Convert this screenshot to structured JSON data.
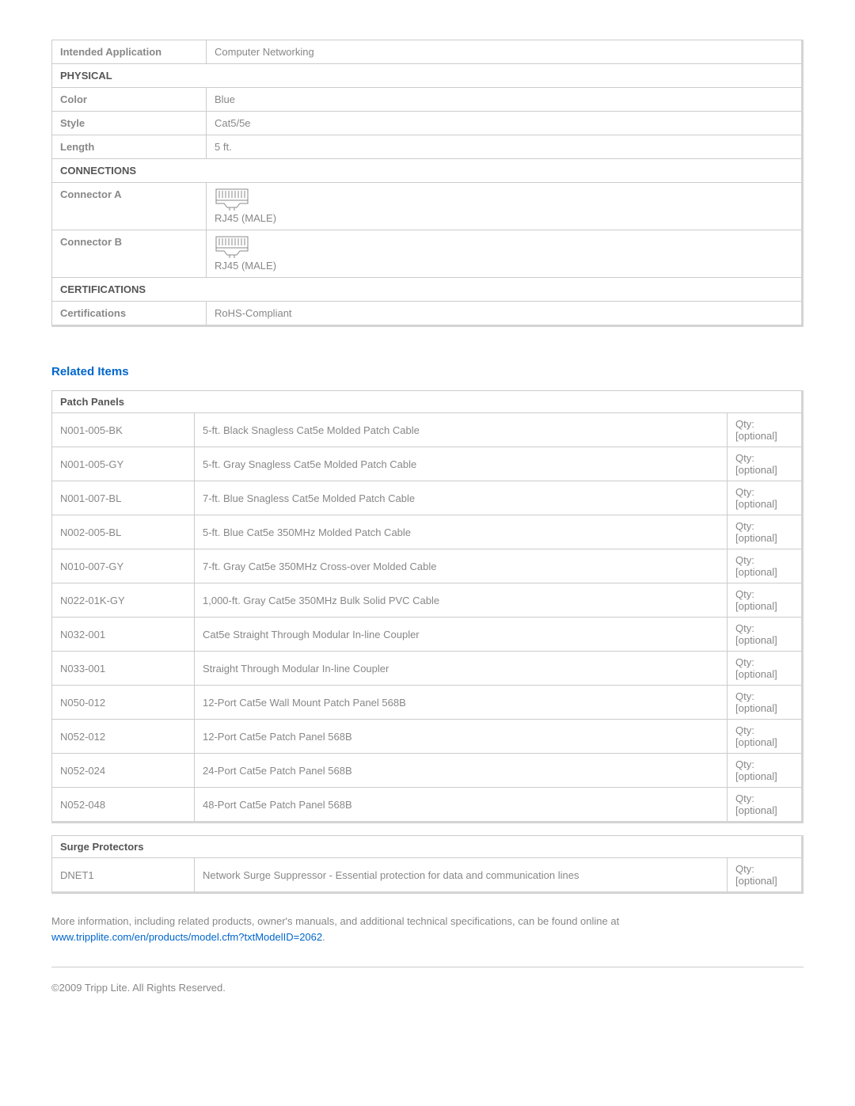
{
  "specs": {
    "intended_application": {
      "label": "Intended Application",
      "value": "Computer Networking"
    },
    "sections": {
      "physical": {
        "header": "PHYSICAL",
        "rows": [
          {
            "label": "Color",
            "value": "Blue"
          },
          {
            "label": "Style",
            "value": "Cat5/5e"
          },
          {
            "label": "Length",
            "value": "5 ft."
          }
        ]
      },
      "connections": {
        "header": "CONNECTIONS",
        "rows": [
          {
            "label": "Connector A",
            "value": "RJ45 (MALE)",
            "icon": "rj45"
          },
          {
            "label": "Connector B",
            "value": "RJ45 (MALE)",
            "icon": "rj45"
          }
        ]
      },
      "certifications": {
        "header": "CERTIFICATIONS",
        "rows": [
          {
            "label": "Certifications",
            "value": "RoHS-Compliant"
          }
        ]
      }
    }
  },
  "related": {
    "heading": "Related Items",
    "groups": [
      {
        "header": "Patch Panels",
        "items": [
          {
            "sku": "N001-005-BK",
            "desc": "5-ft. Black Snagless Cat5e Molded Patch Cable",
            "qty": "Qty: [optional]"
          },
          {
            "sku": "N001-005-GY",
            "desc": "5-ft. Gray Snagless Cat5e Molded Patch Cable",
            "qty": "Qty: [optional]"
          },
          {
            "sku": "N001-007-BL",
            "desc": "7-ft. Blue Snagless Cat5e Molded Patch Cable",
            "qty": "Qty: [optional]"
          },
          {
            "sku": "N002-005-BL",
            "desc": "5-ft. Blue Cat5e 350MHz Molded Patch Cable",
            "qty": "Qty: [optional]"
          },
          {
            "sku": "N010-007-GY",
            "desc": "7-ft. Gray Cat5e 350MHz Cross-over Molded Cable",
            "qty": "Qty: [optional]"
          },
          {
            "sku": "N022-01K-GY",
            "desc": "1,000-ft. Gray Cat5e 350MHz Bulk Solid PVC Cable",
            "qty": "Qty: [optional]"
          },
          {
            "sku": "N032-001",
            "desc": "Cat5e Straight Through Modular In-line Coupler",
            "qty": "Qty: [optional]"
          },
          {
            "sku": "N033-001",
            "desc": "Straight Through Modular In-line Coupler",
            "qty": "Qty: [optional]"
          },
          {
            "sku": "N050-012",
            "desc": "12-Port Cat5e Wall Mount Patch Panel 568B",
            "qty": "Qty: [optional]"
          },
          {
            "sku": "N052-012",
            "desc": "12-Port Cat5e Patch Panel 568B",
            "qty": "Qty: [optional]"
          },
          {
            "sku": "N052-024",
            "desc": "24-Port Cat5e Patch Panel 568B",
            "qty": "Qty: [optional]"
          },
          {
            "sku": "N052-048",
            "desc": "48-Port Cat5e Patch Panel 568B",
            "qty": "Qty: [optional]"
          }
        ]
      },
      {
        "header": "Surge Protectors",
        "items": [
          {
            "sku": "DNET1",
            "desc": "Network Surge Suppressor - Essential protection for data and communication lines",
            "qty": "Qty: [optional]"
          }
        ]
      }
    ]
  },
  "more_info": {
    "text": "More information, including related products, owner's manuals, and additional technical specifications, can be found online at ",
    "link_text": "www.tripplite.com/en/products/model.cfm?txtModelID=2062",
    "period": "."
  },
  "copyright": "©2009 Tripp Lite.  All Rights Reserved.",
  "colors": {
    "text": "#888888",
    "header_text": "#555555",
    "link": "#0066cc",
    "border": "#cccccc",
    "shadow": "#d4d4d4",
    "background": "#ffffff"
  }
}
